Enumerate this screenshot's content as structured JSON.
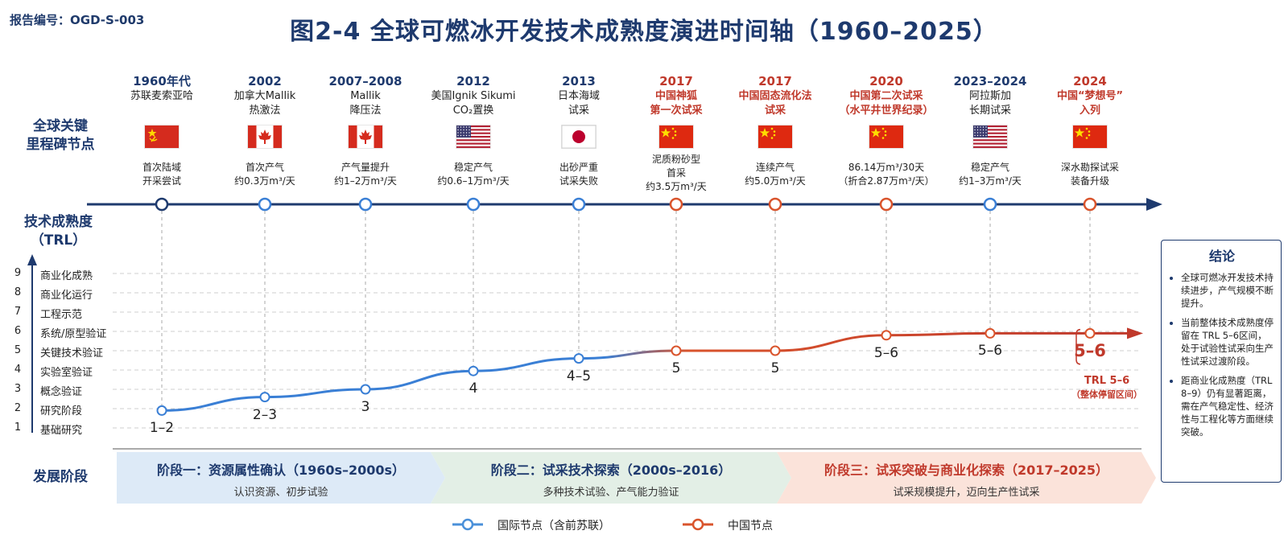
{
  "header": {
    "report_no": "报告编号：OGD-S-003",
    "title": "图2-4  全球可燃冰开发技术成熟度演进时间轴（1960–2025）"
  },
  "row_labels": {
    "milestones": [
      "全球关键",
      "里程碑节点"
    ],
    "trl": [
      "技术成熟度",
      "（TRL）"
    ],
    "phases": "发展阶段"
  },
  "trl_levels": [
    {
      "level": "1",
      "name": "基础研究"
    },
    {
      "level": "2",
      "name": "研究阶段"
    },
    {
      "level": "3",
      "name": "概念验证"
    },
    {
      "level": "4",
      "name": "实验室验证"
    },
    {
      "level": "5",
      "name": "关键技术验证"
    },
    {
      "level": "6",
      "name": "系统/原型验证"
    },
    {
      "level": "7",
      "name": "工程示范"
    },
    {
      "level": "8",
      "name": "商业化运行"
    },
    {
      "level": "9",
      "name": "商业化成熟"
    }
  ],
  "nodes": [
    {
      "year": "1960年代",
      "name": [
        "苏联麦索亚哈"
      ],
      "flag": "ussr-flag",
      "desc": [
        "首次陆域",
        "开采尝试"
      ],
      "trl_label": "1–2",
      "trl_value": 1.9,
      "group": "intl"
    },
    {
      "year": "2002",
      "name": [
        "加拿大Mallik",
        "热激法"
      ],
      "flag": "canada-flag",
      "desc": [
        "首次产气",
        "约0.3万m³/天"
      ],
      "trl_label": "2–3",
      "trl_value": 2.6,
      "group": "intl"
    },
    {
      "year": "2007–2008",
      "name": [
        "Mallik",
        "降压法"
      ],
      "flag": "canada-flag",
      "desc": [
        "产气量提升",
        "约1–2万m³/天"
      ],
      "trl_label": "3",
      "trl_value": 3.0,
      "group": "intl"
    },
    {
      "year": "2012",
      "name": [
        "美国Ignik Sikumi",
        "CO₂置换"
      ],
      "flag": "usa-flag",
      "desc": [
        "稳定产气",
        "约0.6–1万m³/天"
      ],
      "trl_label": "4",
      "trl_value": 3.95,
      "group": "intl"
    },
    {
      "year": "2013",
      "name": [
        "日本海域",
        "试采"
      ],
      "flag": "japan-flag",
      "desc": [
        "出砂严重",
        "试采失败"
      ],
      "trl_label": "4–5",
      "trl_value": 4.6,
      "group": "intl"
    },
    {
      "year": "2017",
      "name": [
        "中国神狐",
        "第一次试采"
      ],
      "flag": "china-flag",
      "desc": [
        "泥质粉砂型",
        "首采",
        "约3.5万m³/天"
      ],
      "trl_label": "5",
      "trl_value": 5.0,
      "group": "cn"
    },
    {
      "year": "2017",
      "name": [
        "中国固态流化法",
        "试采"
      ],
      "flag": "china-flag",
      "desc": [
        "连续产气",
        "约5.0万m³/天"
      ],
      "trl_label": "5",
      "trl_value": 5.0,
      "group": "cn"
    },
    {
      "year": "2020",
      "name": [
        "中国第二次试采",
        "（水平井世界纪录）"
      ],
      "flag": "china-flag",
      "desc": [
        "86.14万m³/30天",
        "（折合2.87万m³/天）"
      ],
      "trl_label": "5–6",
      "trl_value": 5.8,
      "group": "cn"
    },
    {
      "year": "2023–2024",
      "name": [
        "阿拉斯加",
        "长期试采"
      ],
      "flag": "usa-flag",
      "desc": [
        "稳定产气",
        "约1–3万m³/天"
      ],
      "trl_label": "5–6",
      "trl_value": 5.9,
      "group": "intl"
    },
    {
      "year": "2024",
      "name": [
        "中国“梦想号”",
        "入列"
      ],
      "flag": "china-flag",
      "desc": [
        "深水勘探试采",
        "装备升级"
      ],
      "trl_label": "5–6",
      "trl_value": 5.9,
      "group": "cn"
    }
  ],
  "band_note": {
    "title": "TRL 5–6",
    "sub": "（整体停留区间）"
  },
  "phases": [
    {
      "title": "阶段一：资源属性确认（1960s–2000s）",
      "sub": "认识资源、初步试验",
      "fill": "#ddeaf7",
      "color": "#1e3a6e"
    },
    {
      "title": "阶段二：试采技术探索（2000s–2016）",
      "sub": "多种技术试验、产气能力验证",
      "fill": "#e3efe6",
      "color": "#1e3a6e"
    },
    {
      "title": "阶段三：试采突破与商业化探索（2017–2025）",
      "sub": "试采规模提升，迈向生产性试采",
      "fill": "#fbe3da",
      "color": "#c0392b"
    }
  ],
  "conclusion": {
    "title": "结论",
    "items": [
      "全球可燃冰开发技术持续进步，产气规模不断提升。",
      "当前整体技术成熟度停留在 TRL 5–6区间，处于试验性试采向生产性试采过渡阶段。",
      "距商业化成熟度（TRL 8–9）仍有显著距离，需在产气稳定性、经济性与工程化等方面继续突破。"
    ]
  },
  "legend": [
    {
      "label": "国际节点（含前苏联）",
      "color": "#4a90d9"
    },
    {
      "label": "中国节点",
      "color": "#d9542c"
    }
  ],
  "colors": {
    "navy": "#1e3a6e",
    "intl": "#3a7fd5",
    "cn": "#d9542c",
    "cn_text": "#c0392b"
  }
}
